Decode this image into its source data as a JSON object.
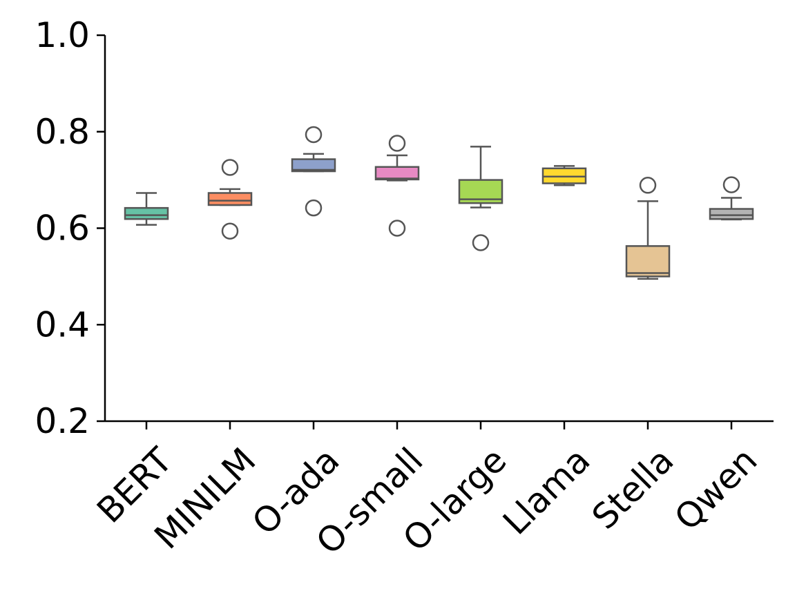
{
  "chart_data": {
    "type": "box",
    "title": "",
    "xlabel": "",
    "ylabel": "",
    "ylim": [
      0.2,
      1.0
    ],
    "yticks": [
      0.2,
      0.4,
      0.6,
      0.8,
      1.0
    ],
    "ytick_labels": [
      "0.2",
      "0.4",
      "0.6",
      "0.8",
      "1.0"
    ],
    "grid": false,
    "categories": [
      "BERT",
      "MINILM",
      "O-ada",
      "O-small",
      "O-large",
      "Llama",
      "Stella",
      "Qwen"
    ],
    "colors": [
      "#66c2a5",
      "#fc8d62",
      "#8da0cb",
      "#e78ac3",
      "#a6d854",
      "#ffd92f",
      "#e5c494",
      "#b3b3b3"
    ],
    "boxes": [
      {
        "min": 0.607,
        "q1": 0.619,
        "median": 0.627,
        "q3": 0.642,
        "max": 0.673,
        "outliers": []
      },
      {
        "min": 0.648,
        "q1": 0.648,
        "median": 0.657,
        "q3": 0.673,
        "max": 0.681,
        "outliers": [
          0.726,
          0.594
        ]
      },
      {
        "min": 0.718,
        "q1": 0.718,
        "median": 0.721,
        "q3": 0.743,
        "max": 0.754,
        "outliers": [
          0.794,
          0.642
        ]
      },
      {
        "min": 0.699,
        "q1": 0.701,
        "median": 0.703,
        "q3": 0.727,
        "max": 0.751,
        "outliers": [
          0.776,
          0.6
        ]
      },
      {
        "min": 0.643,
        "q1": 0.652,
        "median": 0.66,
        "q3": 0.7,
        "max": 0.769,
        "outliers": [
          0.57
        ]
      },
      {
        "min": 0.689,
        "q1": 0.693,
        "median": 0.707,
        "q3": 0.724,
        "max": 0.729,
        "outliers": []
      },
      {
        "min": 0.495,
        "q1": 0.5,
        "median": 0.507,
        "q3": 0.563,
        "max": 0.656,
        "outliers": [
          0.689
        ]
      },
      {
        "min": 0.618,
        "q1": 0.619,
        "median": 0.627,
        "q3": 0.64,
        "max": 0.663,
        "outliers": [
          0.69
        ]
      }
    ]
  }
}
